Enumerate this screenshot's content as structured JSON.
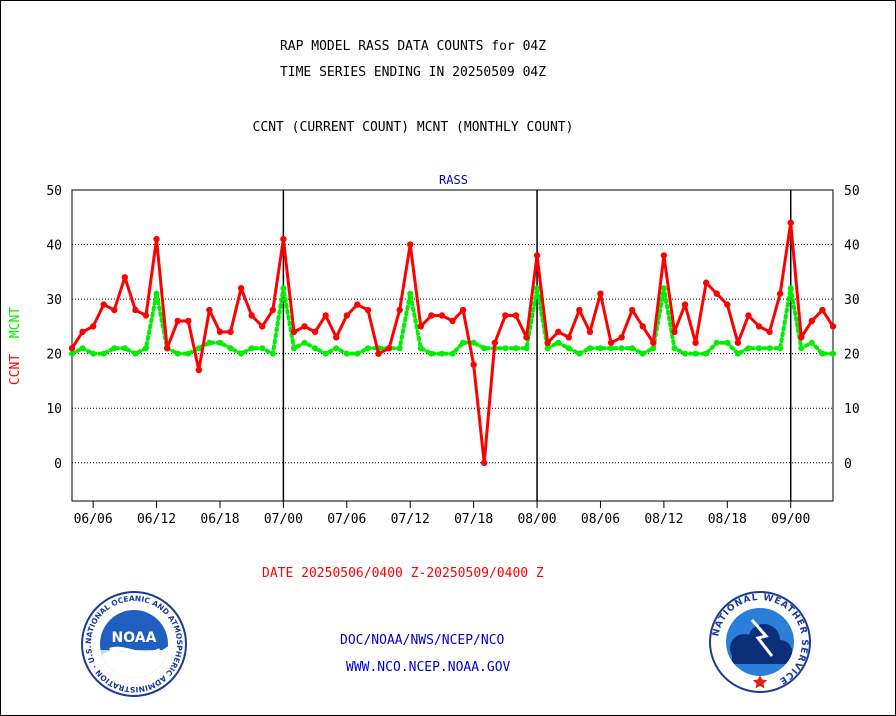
{
  "header": {
    "title_line1": "RAP MODEL RASS DATA COUNTS for 04Z",
    "title_line2": "TIME SERIES ENDING IN 20250509 04Z",
    "title_line3": "CCNT (CURRENT COUNT) MCNT (MONTHLY COUNT)"
  },
  "footer": {
    "date_range": "DATE 20250506/0400 Z-20250509/0400 Z",
    "agency": "DOC/NOAA/NWS/NCEP/NCO",
    "website": "WWW.NCO.NCEP.NOAA.GOV"
  },
  "logos": {
    "noaa_text": "NOAA",
    "noaa_ring_text": "NATIONAL OCEANIC AND ATMOSPHERIC ADMINISTRATION · U.S. DEPARTMENT OF COMMERCE ·",
    "nws_ring_text": "NATIONAL WEATHER SERVICE"
  },
  "colors": {
    "ccnt": "#ff0000",
    "mcnt": "#00ee00",
    "subtitle": "#0000cc",
    "footer_date": "#ff0000",
    "footer_links": "#0000cc"
  },
  "chart_data": {
    "type": "line",
    "subtitle": "RASS",
    "ylabel_left": "CCNT",
    "ylabel_right": "MCNT",
    "ylim": [
      -7,
      50
    ],
    "yticks": [
      0,
      10,
      20,
      30,
      40,
      50
    ],
    "grid": true,
    "categories": [
      "06/06",
      "06/12",
      "06/18",
      "07/00",
      "07/06",
      "07/12",
      "07/18",
      "08/00",
      "08/06",
      "08/12",
      "08/18",
      "09/00"
    ],
    "x_range": [
      0,
      72
    ],
    "x_tick_positions": [
      2,
      8,
      14,
      20,
      26,
      32,
      38,
      44,
      50,
      56,
      62,
      68
    ],
    "x_day_boundaries": [
      20,
      44,
      68
    ],
    "series": [
      {
        "name": "CCNT",
        "x": [
          0,
          1,
          2,
          3,
          4,
          5,
          6,
          7,
          8,
          9,
          10,
          11,
          12,
          13,
          14,
          15,
          16,
          17,
          18,
          19,
          20,
          21,
          22,
          23,
          24,
          25,
          26,
          27,
          28,
          29,
          30,
          31,
          32,
          33,
          34,
          35,
          36,
          37,
          38,
          39,
          40,
          41,
          42,
          43,
          44,
          45,
          46,
          47,
          48,
          49,
          50,
          51,
          52,
          53,
          54,
          55,
          56,
          57,
          58,
          59,
          60,
          61,
          62,
          63,
          64,
          65,
          66,
          67,
          68,
          69,
          70,
          71,
          72
        ],
        "values": [
          21,
          24,
          25,
          29,
          28,
          34,
          28,
          27,
          41,
          21,
          26,
          26,
          17,
          28,
          24,
          24,
          32,
          27,
          25,
          28,
          41,
          24,
          25,
          24,
          27,
          23,
          27,
          29,
          28,
          20,
          21,
          28,
          40,
          25,
          27,
          27,
          26,
          28,
          18,
          0,
          22,
          27,
          27,
          23,
          38,
          22,
          24,
          23,
          28,
          24,
          31,
          22,
          23,
          28,
          25,
          22,
          38,
          24,
          29,
          22,
          33,
          31,
          29,
          22,
          27,
          25,
          24,
          31,
          44,
          23,
          26,
          28,
          25
        ]
      },
      {
        "name": "MCNT",
        "x": [
          0,
          1,
          2,
          3,
          4,
          5,
          6,
          7,
          8,
          9,
          10,
          11,
          12,
          13,
          14,
          15,
          16,
          17,
          18,
          19,
          20,
          21,
          22,
          23,
          24,
          25,
          26,
          27,
          28,
          29,
          30,
          31,
          32,
          33,
          34,
          35,
          36,
          37,
          38,
          39,
          40,
          41,
          42,
          43,
          44,
          45,
          46,
          47,
          48,
          49,
          50,
          51,
          52,
          53,
          54,
          55,
          56,
          57,
          58,
          59,
          60,
          61,
          62,
          63,
          64,
          65,
          66,
          67,
          68,
          69,
          70,
          71,
          72
        ],
        "values": [
          20,
          21,
          20,
          20,
          21,
          21,
          20,
          21,
          31,
          21,
          20,
          20,
          21,
          22,
          22,
          21,
          20,
          21,
          21,
          20,
          32,
          21,
          22,
          21,
          20,
          21,
          20,
          20,
          21,
          21,
          21,
          21,
          31,
          21,
          20,
          20,
          20,
          22,
          22,
          21,
          21,
          21,
          21,
          21,
          32,
          21,
          22,
          21,
          20,
          21,
          21,
          21,
          21,
          21,
          20,
          21,
          32,
          21,
          20,
          20,
          20,
          22,
          22,
          20,
          21,
          21,
          21,
          21,
          32,
          21,
          22,
          20,
          20
        ]
      }
    ]
  }
}
